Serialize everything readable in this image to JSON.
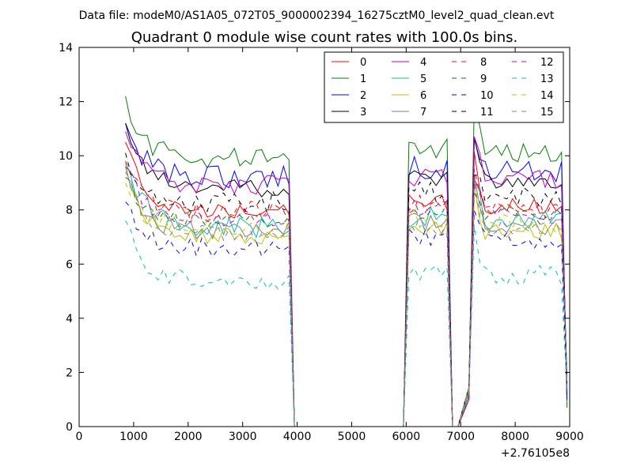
{
  "chart_data": {
    "type": "line",
    "suptitle": "Data file: modeM0/AS1A05_072T05_9000002394_16275cztM0_level2_quad_clean.evt",
    "title": "Quadrant 0 module wise count rates with 100.0s bins.",
    "xlabel": "",
    "ylabel": "",
    "x_offset_label": "+2.76105e8",
    "xlim": [
      0,
      9000
    ],
    "ylim": [
      0,
      14
    ],
    "xticks": [
      "0",
      "1000",
      "2000",
      "3000",
      "4000",
      "5000",
      "6000",
      "7000",
      "8000",
      "9000"
    ],
    "yticks": [
      "0",
      "2",
      "4",
      "6",
      "8",
      "10",
      "12",
      "14"
    ],
    "grid": false,
    "legend_position": "top-right",
    "legend_columns": 4,
    "segments": [
      {
        "x0": 850,
        "x1": 3850,
        "fall_to": 3950
      },
      {
        "rise_from": 5950,
        "x0": 6050,
        "x1": 6750,
        "fall_to": 6850
      },
      {
        "rise_from": 6950,
        "x0": 7150,
        "x1": 7150
      },
      {
        "x0": 7250,
        "x1": 8850,
        "end_x": 8950
      }
    ],
    "series": [
      {
        "name": "0",
        "color": "#ff0000",
        "dashed": false,
        "start": 10.5,
        "level": 7.9,
        "end": 1.8
      },
      {
        "name": "1",
        "color": "#008000",
        "dashed": false,
        "start": 12.2,
        "level": 9.9,
        "end": 0.7
      },
      {
        "name": "2",
        "color": "#0000ff",
        "dashed": false,
        "start": 11.2,
        "level": 9.2,
        "end": 1.0
      },
      {
        "name": "3",
        "color": "#000000",
        "dashed": false,
        "start": 11.2,
        "level": 8.8,
        "end": 1.5
      },
      {
        "name": "4",
        "color": "#bf00bf",
        "dashed": false,
        "start": 10.9,
        "level": 8.9,
        "end": 1.4
      },
      {
        "name": "5",
        "color": "#00bfbf",
        "dashed": false,
        "start": 9.8,
        "level": 7.4,
        "end": 1.6
      },
      {
        "name": "6",
        "color": "#bfbf00",
        "dashed": false,
        "start": 9.7,
        "level": 7.0,
        "end": 1.7
      },
      {
        "name": "7",
        "color": "#808080",
        "dashed": false,
        "start": 9.6,
        "level": 7.2,
        "end": 1.9
      },
      {
        "name": "8",
        "color": "#ff0000",
        "dashed": true,
        "start": 9.8,
        "level": 7.9,
        "end": 1.8
      },
      {
        "name": "9",
        "color": "#008000",
        "dashed": true,
        "start": 9.2,
        "level": 7.6,
        "end": 1.6
      },
      {
        "name": "10",
        "color": "#0000ff",
        "dashed": true,
        "start": 8.3,
        "level": 6.6,
        "end": 1.2
      },
      {
        "name": "11",
        "color": "#000000",
        "dashed": true,
        "start": 10.1,
        "level": 8.3,
        "end": 1.5
      },
      {
        "name": "12",
        "color": "#bf00bf",
        "dashed": true,
        "start": 9.6,
        "level": 7.7,
        "end": 1.5
      },
      {
        "name": "13",
        "color": "#00bfbf",
        "dashed": true,
        "start": 7.6,
        "level": 5.4,
        "end": 1.3
      },
      {
        "name": "14",
        "color": "#bfbf00",
        "dashed": true,
        "start": 9.0,
        "level": 7.3,
        "end": 1.6
      },
      {
        "name": "15",
        "color": "#808080",
        "dashed": true,
        "start": 9.4,
        "level": 7.1,
        "end": 1.7
      }
    ]
  }
}
